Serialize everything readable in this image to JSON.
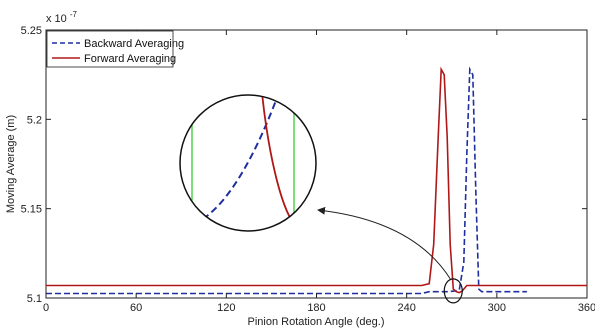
{
  "chart_data": {
    "type": "line",
    "xlabel": "Pinion Rotation Angle (deg.)",
    "ylabel": "Moving Average (m)",
    "y_exponent_label": "x 10",
    "y_exponent_power": "-7",
    "xlim": [
      0,
      360
    ],
    "ylim": [
      5.1,
      5.25
    ],
    "x_ticks": [
      0,
      60,
      120,
      180,
      240,
      300,
      360
    ],
    "x_tick_labels": [
      "0",
      "60",
      "120",
      "180",
      "240",
      "300",
      "360"
    ],
    "y_ticks": [
      5.1,
      5.15,
      5.2,
      5.25
    ],
    "y_tick_labels": [
      "5.1",
      "5.15",
      "5.2",
      "5.25"
    ],
    "grid": false,
    "legend_position": "top-left",
    "series": [
      {
        "name": "Backward Averaging",
        "color": "#1f2f9f",
        "style": "dashed",
        "x": [
          0,
          250,
          255,
          262,
          268,
          272,
          275,
          278,
          280,
          282,
          284,
          286,
          288,
          290,
          292,
          294,
          300,
          310,
          320
        ],
        "y": [
          5.1025,
          5.1025,
          5.1035,
          5.1035,
          5.1035,
          5.104,
          5.1045,
          5.12,
          5.18,
          5.228,
          5.225,
          5.16,
          5.105,
          5.1035,
          5.1035,
          5.1035,
          5.1035,
          5.1035,
          5.1035
        ]
      },
      {
        "name": "Forward Averaging",
        "color": "#b01818",
        "style": "solid",
        "x": [
          0,
          250,
          255,
          258,
          261,
          263,
          265,
          267,
          269,
          271,
          273,
          275,
          277,
          280,
          290,
          300,
          360
        ],
        "y": [
          5.107,
          5.107,
          5.108,
          5.13,
          5.19,
          5.228,
          5.225,
          5.19,
          5.13,
          5.105,
          5.1035,
          5.103,
          5.104,
          5.107,
          5.107,
          5.107,
          5.107
        ]
      }
    ],
    "inset": {
      "type": "zoom",
      "zoom_target": {
        "x": 271,
        "y": 5.104
      },
      "backward_curve_color": "#1f2f9f",
      "forward_curve_color": "#b01818",
      "marker_color": "#33cc33"
    }
  }
}
